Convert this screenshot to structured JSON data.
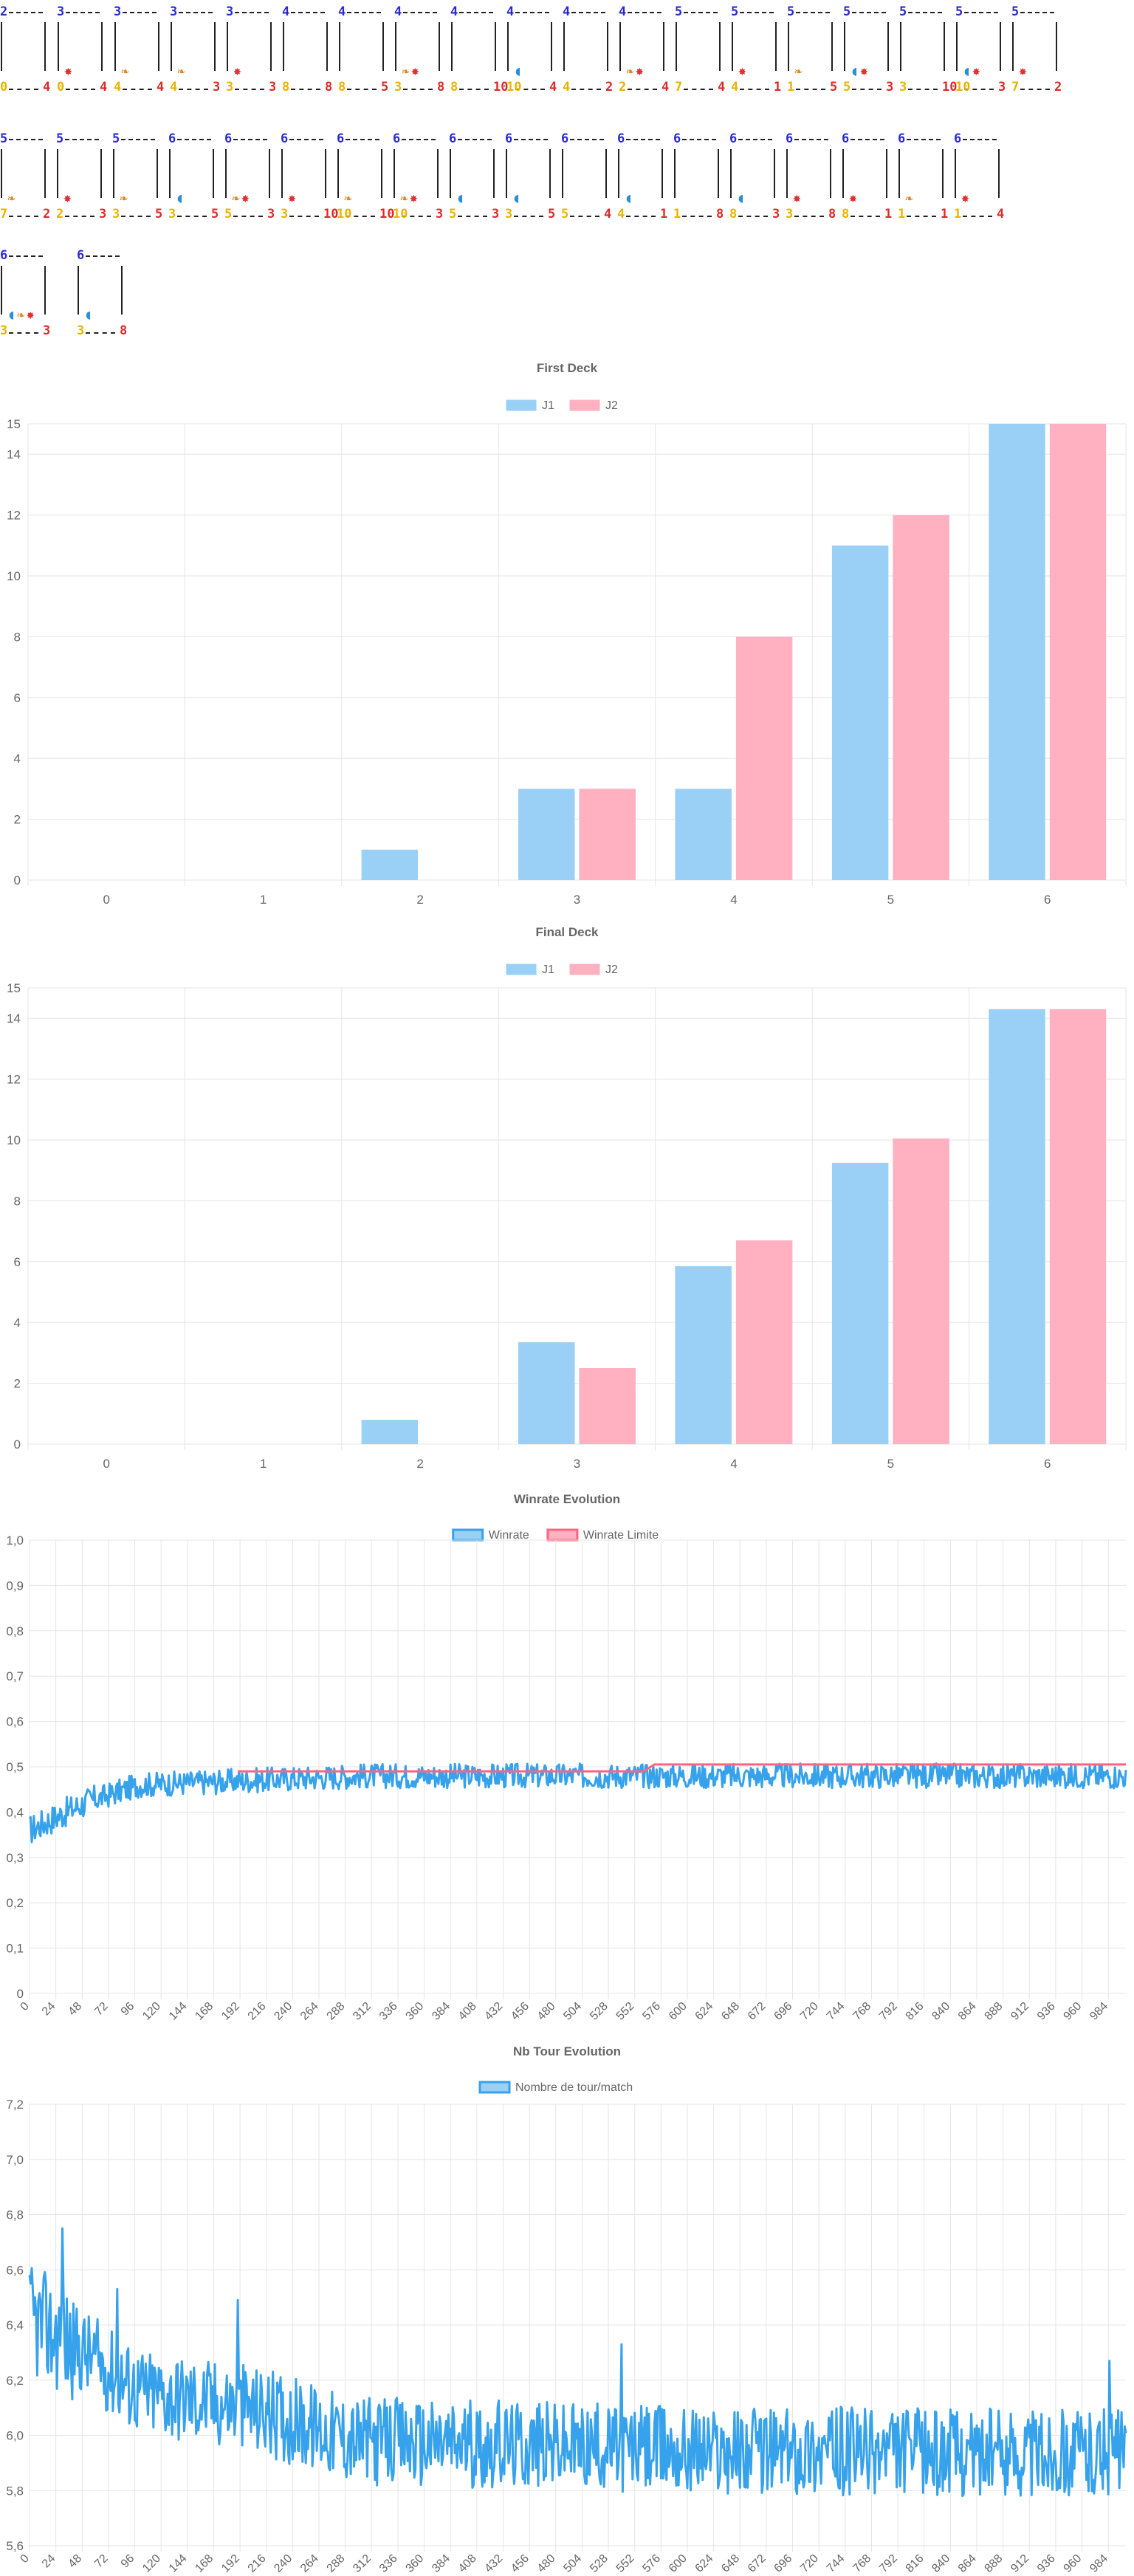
{
  "cards": [
    {
      "top": "2",
      "bl": "0",
      "br": "4",
      "syms": []
    },
    {
      "top": "3",
      "bl": "0",
      "br": "4",
      "syms": [
        "star"
      ]
    },
    {
      "top": "3",
      "bl": "4",
      "br": "4",
      "syms": [
        "feather"
      ]
    },
    {
      "top": "3",
      "bl": "4",
      "br": "3",
      "syms": [
        "feather"
      ]
    },
    {
      "top": "3",
      "bl": "3",
      "br": "3",
      "syms": [
        "star"
      ]
    },
    {
      "top": "4",
      "bl": "8",
      "br": "8",
      "syms": []
    },
    {
      "top": "4",
      "bl": "8",
      "br": "5",
      "syms": []
    },
    {
      "top": "4",
      "bl": "3",
      "br": "8",
      "syms": [
        "feather",
        "star"
      ]
    },
    {
      "top": "4",
      "bl": "8",
      "br": "10",
      "syms": []
    },
    {
      "top": "4",
      "bl": "10",
      "br": "4",
      "syms": [
        "shield"
      ]
    },
    {
      "top": "4",
      "bl": "4",
      "br": "2",
      "syms": []
    },
    {
      "top": "4",
      "bl": "2",
      "br": "4",
      "syms": [
        "feather",
        "star"
      ]
    },
    {
      "top": "5",
      "bl": "7",
      "br": "4",
      "syms": []
    },
    {
      "top": "5",
      "bl": "4",
      "br": "1",
      "syms": [
        "star"
      ]
    },
    {
      "top": "5",
      "bl": "1",
      "br": "5",
      "syms": [
        "feather"
      ]
    },
    {
      "top": "5",
      "bl": "5",
      "br": "3",
      "syms": [
        "shield",
        "star"
      ]
    },
    {
      "top": "5",
      "bl": "3",
      "br": "10",
      "syms": []
    },
    {
      "top": "5",
      "bl": "10",
      "br": "3",
      "syms": [
        "shield",
        "star"
      ]
    },
    {
      "top": "5",
      "bl": "7",
      "br": "2",
      "syms": [
        "star"
      ]
    },
    {
      "top": "5",
      "bl": "7",
      "br": "2",
      "syms": [
        "feather"
      ]
    },
    {
      "top": "5",
      "bl": "2",
      "br": "3",
      "syms": [
        "star"
      ]
    },
    {
      "top": "5",
      "bl": "3",
      "br": "5",
      "syms": [
        "feather"
      ]
    },
    {
      "top": "6",
      "bl": "3",
      "br": "5",
      "syms": [
        "shield"
      ]
    },
    {
      "top": "6",
      "bl": "5",
      "br": "3",
      "syms": [
        "feather",
        "star"
      ]
    },
    {
      "top": "6",
      "bl": "3",
      "br": "10",
      "syms": [
        "star"
      ]
    },
    {
      "top": "6",
      "bl": "10",
      "br": "10",
      "syms": [
        "feather"
      ]
    },
    {
      "top": "6",
      "bl": "10",
      "br": "3",
      "syms": [
        "feather",
        "star"
      ]
    },
    {
      "top": "6",
      "bl": "5",
      "br": "3",
      "syms": [
        "shield"
      ]
    },
    {
      "top": "6",
      "bl": "3",
      "br": "5",
      "syms": [
        "shield"
      ]
    },
    {
      "top": "6",
      "bl": "5",
      "br": "4",
      "syms": []
    },
    {
      "top": "6",
      "bl": "4",
      "br": "1",
      "syms": [
        "shield"
      ]
    },
    {
      "top": "6",
      "bl": "1",
      "br": "8",
      "syms": []
    },
    {
      "top": "6",
      "bl": "8",
      "br": "3",
      "syms": [
        "shield"
      ]
    },
    {
      "top": "6",
      "bl": "3",
      "br": "8",
      "syms": [
        "star"
      ]
    },
    {
      "top": "6",
      "bl": "8",
      "br": "1",
      "syms": [
        "star"
      ]
    },
    {
      "top": "6",
      "bl": "1",
      "br": "1",
      "syms": [
        "feather"
      ]
    },
    {
      "top": "6",
      "bl": "1",
      "br": "4",
      "syms": [
        "star"
      ]
    },
    {
      "top": "6",
      "bl": "3",
      "br": "3",
      "syms": [
        "shield",
        "feather",
        "star"
      ]
    },
    {
      "top": "6",
      "bl": "3",
      "br": "8",
      "syms": [
        "shield"
      ]
    }
  ],
  "colors": {
    "j1": "#9ad0f5",
    "j2": "#ffb1c1",
    "winrate": "#36a2eb",
    "limit": "#ff6384",
    "grid": "#e5e5e5",
    "tick": "#666666"
  },
  "chart_data": [
    {
      "type": "bar",
      "title": "First Deck",
      "categories": [
        "0",
        "1",
        "2",
        "3",
        "4",
        "5",
        "6"
      ],
      "series": [
        {
          "name": "J1",
          "values": [
            0,
            0,
            1,
            3,
            3,
            11,
            15
          ]
        },
        {
          "name": "J2",
          "values": [
            0,
            0,
            0,
            3,
            8,
            12,
            15
          ]
        }
      ],
      "ylim": [
        0,
        15
      ],
      "yticks": [
        "0",
        "2",
        "4",
        "6",
        "8",
        "10",
        "12",
        "14",
        "15"
      ],
      "legend": "top"
    },
    {
      "type": "bar",
      "title": "Final Deck",
      "categories": [
        "0",
        "1",
        "2",
        "3",
        "4",
        "5",
        "6"
      ],
      "series": [
        {
          "name": "J1",
          "values": [
            0,
            0,
            0.8,
            3.35,
            5.85,
            9.25,
            14.3
          ]
        },
        {
          "name": "J2",
          "values": [
            0,
            0,
            0,
            2.5,
            6.7,
            10.05,
            14.3
          ]
        }
      ],
      "ylim": [
        0,
        15
      ],
      "yticks": [
        "0",
        "2",
        "4",
        "6",
        "8",
        "10",
        "12",
        "14",
        "15"
      ],
      "legend": "top"
    },
    {
      "type": "line",
      "title": "Winrate Evolution",
      "series": [
        {
          "name": "Winrate"
        },
        {
          "name": "Winrate Limite"
        }
      ],
      "ylim": [
        0,
        1
      ],
      "yticks": [
        "0",
        "0,1",
        "0,2",
        "0,3",
        "0,4",
        "0,5",
        "0,6",
        "0,7",
        "0,8",
        "0,9",
        "1,0"
      ],
      "xlim": [
        0,
        1000
      ],
      "xticks": [
        "0",
        "24",
        "48",
        "72",
        "96",
        "120",
        "144",
        "168",
        "192",
        "216",
        "240",
        "264",
        "288",
        "312",
        "336",
        "360",
        "384",
        "408",
        "432",
        "456",
        "480",
        "504",
        "528",
        "552",
        "576",
        "600",
        "624",
        "648",
        "672",
        "696",
        "720",
        "744",
        "768",
        "792",
        "816",
        "840",
        "864",
        "888",
        "912",
        "936",
        "960",
        "984"
      ],
      "winrate_approx": [
        [
          0,
          0.36
        ],
        [
          50,
          0.42
        ],
        [
          100,
          0.46
        ],
        [
          200,
          0.47
        ],
        [
          300,
          0.48
        ],
        [
          500,
          0.48
        ],
        [
          700,
          0.48
        ],
        [
          1000,
          0.48
        ]
      ],
      "limit_approx": [
        [
          190,
          0.49
        ],
        [
          560,
          0.49
        ],
        [
          570,
          0.505
        ],
        [
          1000,
          0.505
        ]
      ],
      "legend": "top"
    },
    {
      "type": "line",
      "title": "Nb Tour Evolution",
      "series": [
        {
          "name": "Nombre de tour/match"
        }
      ],
      "ylim": [
        5.6,
        7.2
      ],
      "yticks": [
        "5,6",
        "5,8",
        "6,0",
        "6,2",
        "6,4",
        "6,6",
        "6,8",
        "7,0",
        "7,2"
      ],
      "xlim": [
        0,
        1000
      ],
      "xticks": [
        "0",
        "24",
        "48",
        "72",
        "96",
        "120",
        "144",
        "168",
        "192",
        "216",
        "240",
        "264",
        "288",
        "312",
        "336",
        "360",
        "384",
        "408",
        "432",
        "456",
        "480",
        "504",
        "528",
        "552",
        "576",
        "600",
        "624",
        "648",
        "672",
        "696",
        "720",
        "744",
        "768",
        "792",
        "816",
        "840",
        "864",
        "888",
        "912",
        "936",
        "960",
        "984"
      ],
      "values_approx": [
        [
          0,
          6.42
        ],
        [
          50,
          6.3
        ],
        [
          100,
          6.16
        ],
        [
          200,
          6.1
        ],
        [
          300,
          5.98
        ],
        [
          400,
          5.97
        ],
        [
          600,
          5.95
        ],
        [
          800,
          5.94
        ],
        [
          1000,
          5.94
        ]
      ],
      "legend": "top"
    }
  ]
}
